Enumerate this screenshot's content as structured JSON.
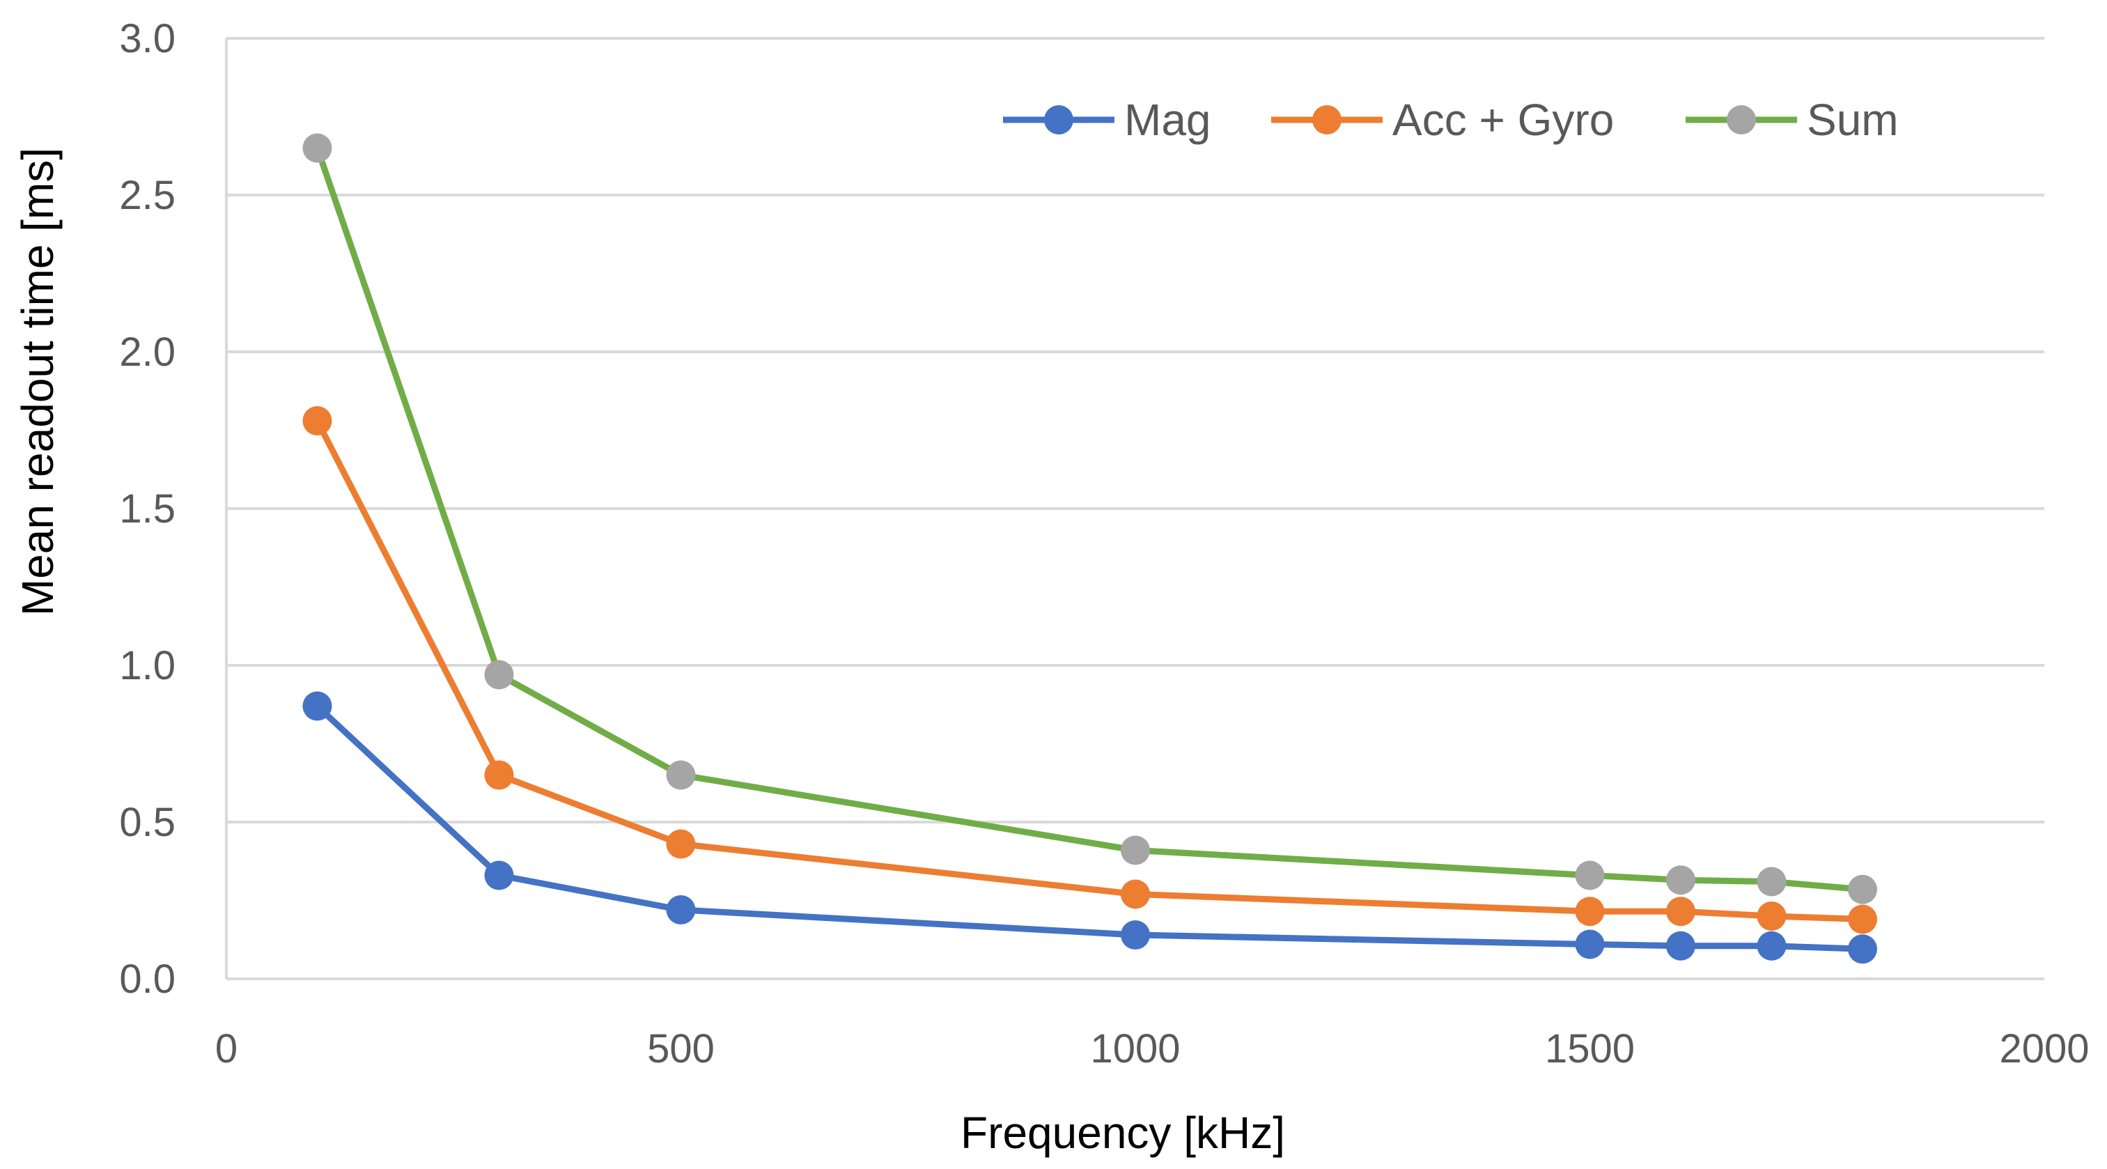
{
  "chart_data": {
    "type": "line",
    "title": "",
    "xlabel": "Frequency [kHz]",
    "ylabel": "Mean readout time [ms]",
    "xlim": [
      0,
      2000
    ],
    "ylim": [
      0,
      3.0
    ],
    "xticks": [
      0,
      500,
      1000,
      1500,
      2000
    ],
    "xtick_labels": [
      "0",
      "500",
      "1000",
      "1500",
      "2000"
    ],
    "yticks": [
      0,
      0.5,
      1.0,
      1.5,
      2.0,
      2.5,
      3.0
    ],
    "ytick_labels": [
      "0.0",
      "0.5",
      "1.0",
      "1.5",
      "2.0",
      "2.5",
      "3.0"
    ],
    "grid": "horizontal",
    "legend_position": "top-right",
    "x": [
      100,
      300,
      500,
      1000,
      1500,
      1600,
      1700,
      1800
    ],
    "series": [
      {
        "name": "Mag",
        "line_color": "#4472C4",
        "marker_color": "#4472C4",
        "values": [
          0.87,
          0.33,
          0.22,
          0.14,
          0.11,
          0.105,
          0.105,
          0.095
        ]
      },
      {
        "name": "Acc + Gyro",
        "line_color": "#ED7D31",
        "marker_color": "#ED7D31",
        "values": [
          1.78,
          0.65,
          0.43,
          0.27,
          0.215,
          0.215,
          0.2,
          0.19
        ]
      },
      {
        "name": "Sum",
        "line_color": "#70AD47",
        "marker_color": "#A5A5A5",
        "values": [
          2.65,
          0.97,
          0.65,
          0.41,
          0.33,
          0.315,
          0.31,
          0.285
        ]
      }
    ]
  }
}
